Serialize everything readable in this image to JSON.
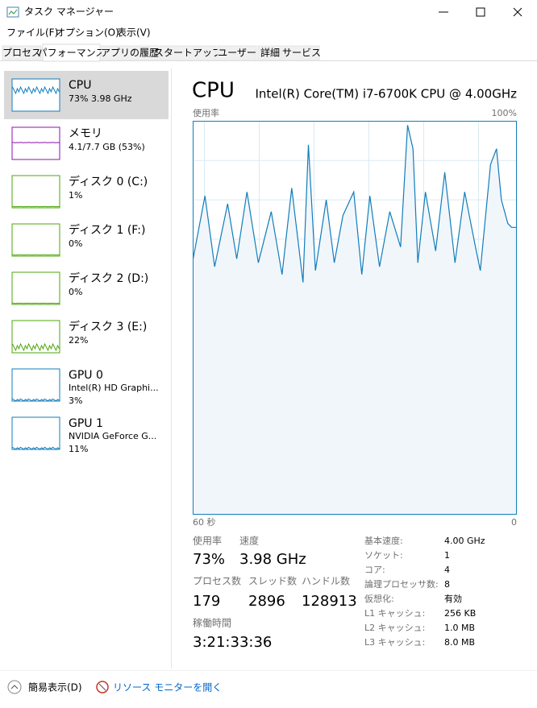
{
  "window": {
    "title": "タスク マネージャー"
  },
  "menu": [
    "ファイル(F)",
    "オプション(O)",
    "表示(V)"
  ],
  "tabs": [
    "プロセス",
    "パフォーマンス",
    "アプリの履歴",
    "スタートアップ",
    "ユーザー",
    "詳細",
    "サービス"
  ],
  "active_tab": 1,
  "sidebar": [
    {
      "name": "CPU",
      "lines": [
        "73%  3.98 GHz"
      ],
      "color": "#117dbb"
    },
    {
      "name": "メモリ",
      "lines": [
        "4.1/7.7 GB (53%)"
      ],
      "color": "#8b12ae"
    },
    {
      "name": "ディスク 0 (C:)",
      "lines": [
        "1%"
      ],
      "color": "#4da60c"
    },
    {
      "name": "ディスク 1 (F:)",
      "lines": [
        "0%"
      ],
      "color": "#4da60c"
    },
    {
      "name": "ディスク 2 (D:)",
      "lines": [
        "0%"
      ],
      "color": "#4da60c"
    },
    {
      "name": "ディスク 3 (E:)",
      "lines": [
        "22%"
      ],
      "color": "#4da60c"
    },
    {
      "name": "GPU 0",
      "lines": [
        "Intel(R) HD Graphi...",
        "3%"
      ],
      "color": "#117dbb"
    },
    {
      "name": "GPU 1",
      "lines": [
        "NVIDIA GeForce G...",
        "11%"
      ],
      "color": "#117dbb"
    }
  ],
  "selected_item": 0,
  "main": {
    "title": "CPU",
    "processor": "Intel(R) Core(TM) i7-6700K CPU @ 4.00GHz",
    "graph": {
      "type": "line",
      "y_label": "使用率",
      "max_label": "100%",
      "left_label": "60 秒",
      "right_label": "0",
      "color": "#117dbb",
      "fill": "#f1f6fa",
      "grid_color": "#d9eaf4",
      "xlim": [
        60,
        0
      ],
      "ylim": [
        0,
        100
      ],
      "x": [
        60,
        57.8,
        56,
        53.6,
        51.9,
        50,
        47.9,
        45.5,
        43.5,
        41.7,
        39.6,
        38.6,
        37.3,
        35.3,
        33.8,
        32.2,
        30.2,
        28.7,
        27.2,
        25.4,
        23.5,
        21.5,
        20.2,
        19.2,
        18.3,
        16.9,
        15,
        13.3,
        11.4,
        9.6,
        7.6,
        6.7,
        4.8,
        3.7,
        2.8,
        1.6,
        0.9,
        0
      ],
      "values": [
        65,
        81,
        63,
        79,
        65,
        82,
        64,
        77,
        61,
        83,
        59,
        94,
        62,
        80,
        64,
        76,
        82,
        61,
        81,
        63,
        77,
        68,
        99,
        93,
        64,
        82,
        67,
        87,
        64,
        82,
        68,
        62,
        89,
        93,
        80,
        74,
        73,
        73
      ]
    },
    "stats": [
      {
        "label": "使用率",
        "value": "73%"
      },
      {
        "label": "速度",
        "value": "3.98 GHz"
      },
      {
        "label": "プロセス数",
        "value": "179"
      },
      {
        "label": "スレッド数",
        "value": "2896"
      },
      {
        "label": "ハンドル数",
        "value": "128913"
      },
      {
        "label": "稼働時間",
        "value": "3:21:33:36"
      }
    ],
    "specs": [
      {
        "label": "基本速度:",
        "value": "4.00 GHz"
      },
      {
        "label": "ソケット:",
        "value": "1"
      },
      {
        "label": "コア:",
        "value": "4"
      },
      {
        "label": "論理プロセッサ数:",
        "value": "8"
      },
      {
        "label": "仮想化:",
        "value": "有効"
      },
      {
        "label": "L1 キャッシュ:",
        "value": "256 KB"
      },
      {
        "label": "L2 キャッシュ:",
        "value": "1.0 MB"
      },
      {
        "label": "L3 キャッシュ:",
        "value": "8.0 MB"
      }
    ]
  },
  "footer": {
    "fewer_details": "簡易表示(D)",
    "resource_monitor": "リソース モニターを開く"
  }
}
